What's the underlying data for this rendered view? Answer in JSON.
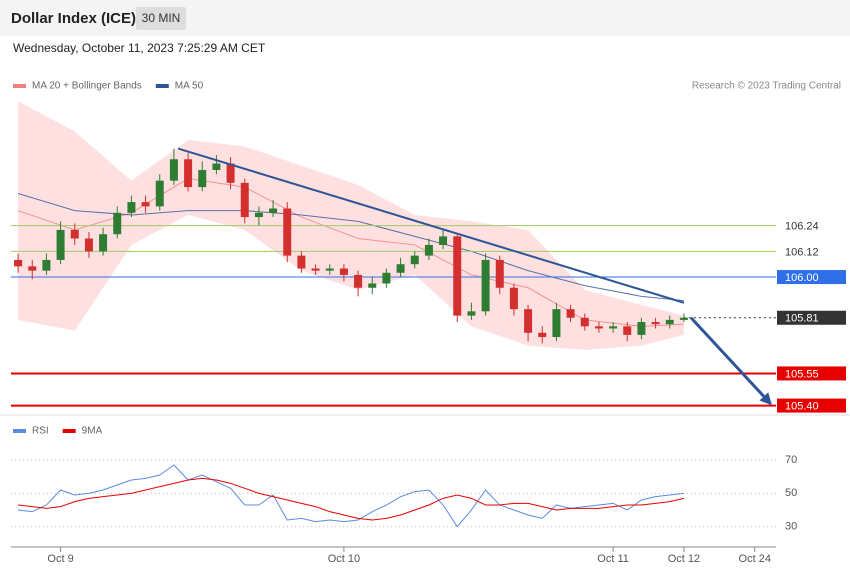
{
  "header": {
    "title": "Dollar Index (ICE)",
    "interval": "30 MIN",
    "timestamp": "Wednesday, October 11, 2023 7:25:29 AM CET",
    "credit": "Research © 2023 Trading Central"
  },
  "chart_data": [
    {
      "type": "candlestick",
      "xlim": [
        -0.5,
        53.5
      ],
      "ylim": [
        105.37,
        106.85
      ],
      "up_color": "#2e7d32",
      "down_color": "#d32f2f",
      "open": [
        106.08,
        106.05,
        106.03,
        106.08,
        106.22,
        106.18,
        106.12,
        106.2,
        106.3,
        106.35,
        106.33,
        106.45,
        106.55,
        106.42,
        106.5,
        106.53,
        106.44,
        106.28,
        106.3,
        106.32,
        106.1,
        106.04,
        106.03,
        106.04,
        106.01,
        105.95,
        105.97,
        106.02,
        106.06,
        106.1,
        106.15,
        106.19,
        105.82,
        105.84,
        106.08,
        105.95,
        105.85,
        105.74,
        105.72,
        105.85,
        105.81,
        105.77,
        105.76,
        105.77,
        105.73,
        105.79,
        105.78,
        105.8
      ],
      "high": [
        106.11,
        106.08,
        106.11,
        106.26,
        106.25,
        106.21,
        106.23,
        106.33,
        106.38,
        106.38,
        106.48,
        106.6,
        106.58,
        106.54,
        106.57,
        106.56,
        106.46,
        106.33,
        106.36,
        106.35,
        106.12,
        106.06,
        106.06,
        106.06,
        106.03,
        106.0,
        106.04,
        106.09,
        106.12,
        106.18,
        106.22,
        106.2,
        105.88,
        106.11,
        106.1,
        105.97,
        105.87,
        105.77,
        105.88,
        105.87,
        105.83,
        105.79,
        105.79,
        105.79,
        105.81,
        105.81,
        105.82,
        105.83
      ],
      "low": [
        106.02,
        105.99,
        106.01,
        106.06,
        106.15,
        106.09,
        106.1,
        106.18,
        106.28,
        106.3,
        106.31,
        106.43,
        106.4,
        106.4,
        106.48,
        106.41,
        106.25,
        106.24,
        106.28,
        106.07,
        106.02,
        106.01,
        106.01,
        105.98,
        105.91,
        105.92,
        105.95,
        106.0,
        106.04,
        106.08,
        106.13,
        105.79,
        105.8,
        105.82,
        105.92,
        105.82,
        105.7,
        105.69,
        105.7,
        105.79,
        105.75,
        105.74,
        105.74,
        105.7,
        105.71,
        105.76,
        105.76,
        105.79
      ],
      "close": [
        106.05,
        106.03,
        106.08,
        106.22,
        106.18,
        106.12,
        106.2,
        106.3,
        106.35,
        106.33,
        106.45,
        106.55,
        106.42,
        106.5,
        106.53,
        106.44,
        106.28,
        106.3,
        106.32,
        106.1,
        106.04,
        106.03,
        106.04,
        106.01,
        105.95,
        105.97,
        106.02,
        106.06,
        106.1,
        106.15,
        106.19,
        105.82,
        105.84,
        106.08,
        105.95,
        105.85,
        105.74,
        105.72,
        105.85,
        105.81,
        105.77,
        105.76,
        105.77,
        105.73,
        105.79,
        105.78,
        105.8,
        105.81
      ],
      "series": [
        {
          "name": "MA 20 + Bollinger Bands",
          "color": "#f08080",
          "band_color": "#ffe0e0",
          "x": [
            0,
            4,
            8,
            12,
            16,
            20,
            24,
            28,
            32,
            36,
            40,
            44,
            47
          ],
          "values": [
            106.31,
            106.22,
            106.3,
            106.46,
            106.42,
            106.28,
            106.18,
            106.15,
            106.01,
            105.95,
            105.8,
            105.77,
            105.78
          ],
          "upper": [
            106.82,
            106.68,
            106.45,
            106.64,
            106.61,
            106.52,
            106.43,
            106.29,
            106.26,
            106.22,
            105.94,
            105.87,
            105.82
          ],
          "lower": [
            105.8,
            105.75,
            106.15,
            106.29,
            106.22,
            106.03,
            105.94,
            106.01,
            105.77,
            105.68,
            105.66,
            105.68,
            105.73
          ]
        },
        {
          "name": "MA 50",
          "color": "#2f5597",
          "x": [
            0,
            4,
            8,
            12,
            16,
            20,
            24,
            28,
            32,
            36,
            40,
            44,
            47
          ],
          "values": [
            106.39,
            106.31,
            106.29,
            106.31,
            106.31,
            106.29,
            106.26,
            106.19,
            106.12,
            106.03,
            105.96,
            105.91,
            105.89
          ]
        }
      ],
      "levels": [
        {
          "value": 106.24,
          "color": "#9ccc65",
          "box": false,
          "dash": false
        },
        {
          "value": 106.12,
          "color": "#9ccc65",
          "box": false,
          "dash": false
        },
        {
          "value": 106,
          "label": "106.00",
          "color": "#2f6fe8",
          "box": true,
          "dash": false
        },
        {
          "value": 105.81,
          "color": "#333333",
          "box": true,
          "dash": true
        },
        {
          "value": 105.55,
          "color": "#e60000",
          "box": true,
          "dash": false
        },
        {
          "value": 105.4,
          "label": "105.40",
          "color": "#e60000",
          "box": true,
          "dash": false
        }
      ],
      "trendline": {
        "color": "#2f5597",
        "x": [
          11.3,
          47
        ],
        "values": [
          106.6,
          105.88
        ]
      },
      "arrow": {
        "color": "#2f5597",
        "x": [
          47.5,
          53.1
        ],
        "values": [
          105.81,
          105.41
        ]
      }
    },
    {
      "type": "line",
      "xlim": [
        -0.5,
        53.5
      ],
      "ylim": [
        22,
        79
      ],
      "yticks": [
        30,
        50,
        70
      ],
      "grid": true,
      "xticks": [
        {
          "value": 3,
          "label": "Oct 9"
        },
        {
          "value": 23,
          "label": "Oct 10"
        },
        {
          "value": 42,
          "label": "Oct 11"
        },
        {
          "value": 47,
          "label": "Oct 12"
        },
        {
          "value": 52,
          "label": "Oct 24"
        }
      ],
      "series": [
        {
          "name": "RSI",
          "color": "#5b8be0",
          "values": [
            40,
            39,
            43,
            52,
            49,
            50,
            52,
            55,
            58,
            59,
            61,
            67,
            58,
            61,
            57,
            53,
            43,
            43,
            49,
            34,
            35,
            33,
            34,
            33,
            34,
            39,
            43,
            48,
            51,
            52,
            43,
            30,
            40,
            52,
            43,
            40,
            37,
            35,
            43,
            41,
            42,
            43,
            44,
            40,
            46,
            48,
            49,
            50
          ]
        },
        {
          "name": "9MA",
          "color": "#e60000",
          "values": [
            43,
            42,
            41,
            42,
            45,
            47,
            48,
            49,
            50,
            52,
            54,
            56,
            58,
            59,
            58,
            56,
            53,
            50,
            48,
            46,
            44,
            42,
            39,
            37,
            35,
            34,
            35,
            37,
            40,
            43,
            47,
            49,
            47,
            43,
            43,
            44,
            44,
            42,
            40,
            41,
            41,
            41,
            42,
            43,
            43,
            44,
            45,
            47
          ]
        }
      ]
    }
  ]
}
